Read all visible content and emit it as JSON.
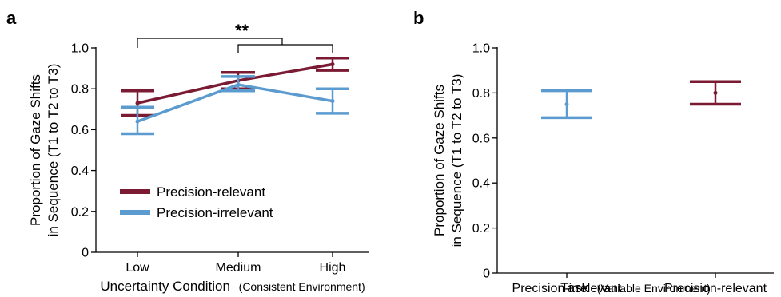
{
  "colors": {
    "precision_relevant": "#7a1a33",
    "precision_irrelevant": "#5b9bd0",
    "axis": "#000000"
  },
  "chart_data": [
    {
      "panel": "a",
      "type": "line",
      "xlabel": "Uncertainty Condition",
      "xlabel_note": "(Consistent Environment)",
      "ylabel_line1": "Proportion of Gaze Shifts",
      "ylabel_line2": "in Sequence (T1 to T2 to T3)",
      "categories": [
        "Low",
        "Medium",
        "High"
      ],
      "ylim": [
        0,
        1.0
      ],
      "yticks": [
        "0",
        "0.2",
        "0.4",
        "0.6",
        "0.8",
        "1.0"
      ],
      "grid": false,
      "legend_position": "bottom-left",
      "series": [
        {
          "name": "Precision-relevant",
          "color_key": "precision_relevant",
          "values": [
            0.73,
            0.84,
            0.92
          ],
          "err_low": [
            0.67,
            0.8,
            0.89
          ],
          "err_high": [
            0.79,
            0.88,
            0.95
          ]
        },
        {
          "name": "Precision-irrelevant",
          "color_key": "precision_irrelevant",
          "values": [
            0.64,
            0.82,
            0.74
          ],
          "err_low": [
            0.58,
            0.79,
            0.68
          ],
          "err_high": [
            0.71,
            0.86,
            0.8
          ]
        }
      ],
      "annotation": {
        "text": "**",
        "bracket_from_category": "Low",
        "bracket_to_categories": [
          "Medium",
          "High"
        ]
      }
    },
    {
      "panel": "b",
      "type": "scatter",
      "xlabel": "Task",
      "xlabel_note": "(Variable Environment)",
      "ylabel_line1": "Proportion of Gaze Shifts",
      "ylabel_line2": "in Sequence (T1 to T2 to T3)",
      "categories": [
        "Precision-irrelevant",
        "Precision-relevant"
      ],
      "ylim": [
        0,
        1.0
      ],
      "yticks": [
        "0",
        "0.2",
        "0.4",
        "0.6",
        "0.8",
        "1.0"
      ],
      "grid": false,
      "points": [
        {
          "category": "Precision-irrelevant",
          "color_key": "precision_irrelevant",
          "value": 0.75,
          "err_low": 0.69,
          "err_high": 0.81
        },
        {
          "category": "Precision-relevant",
          "color_key": "precision_relevant",
          "value": 0.8,
          "err_low": 0.75,
          "err_high": 0.85
        }
      ]
    }
  ]
}
